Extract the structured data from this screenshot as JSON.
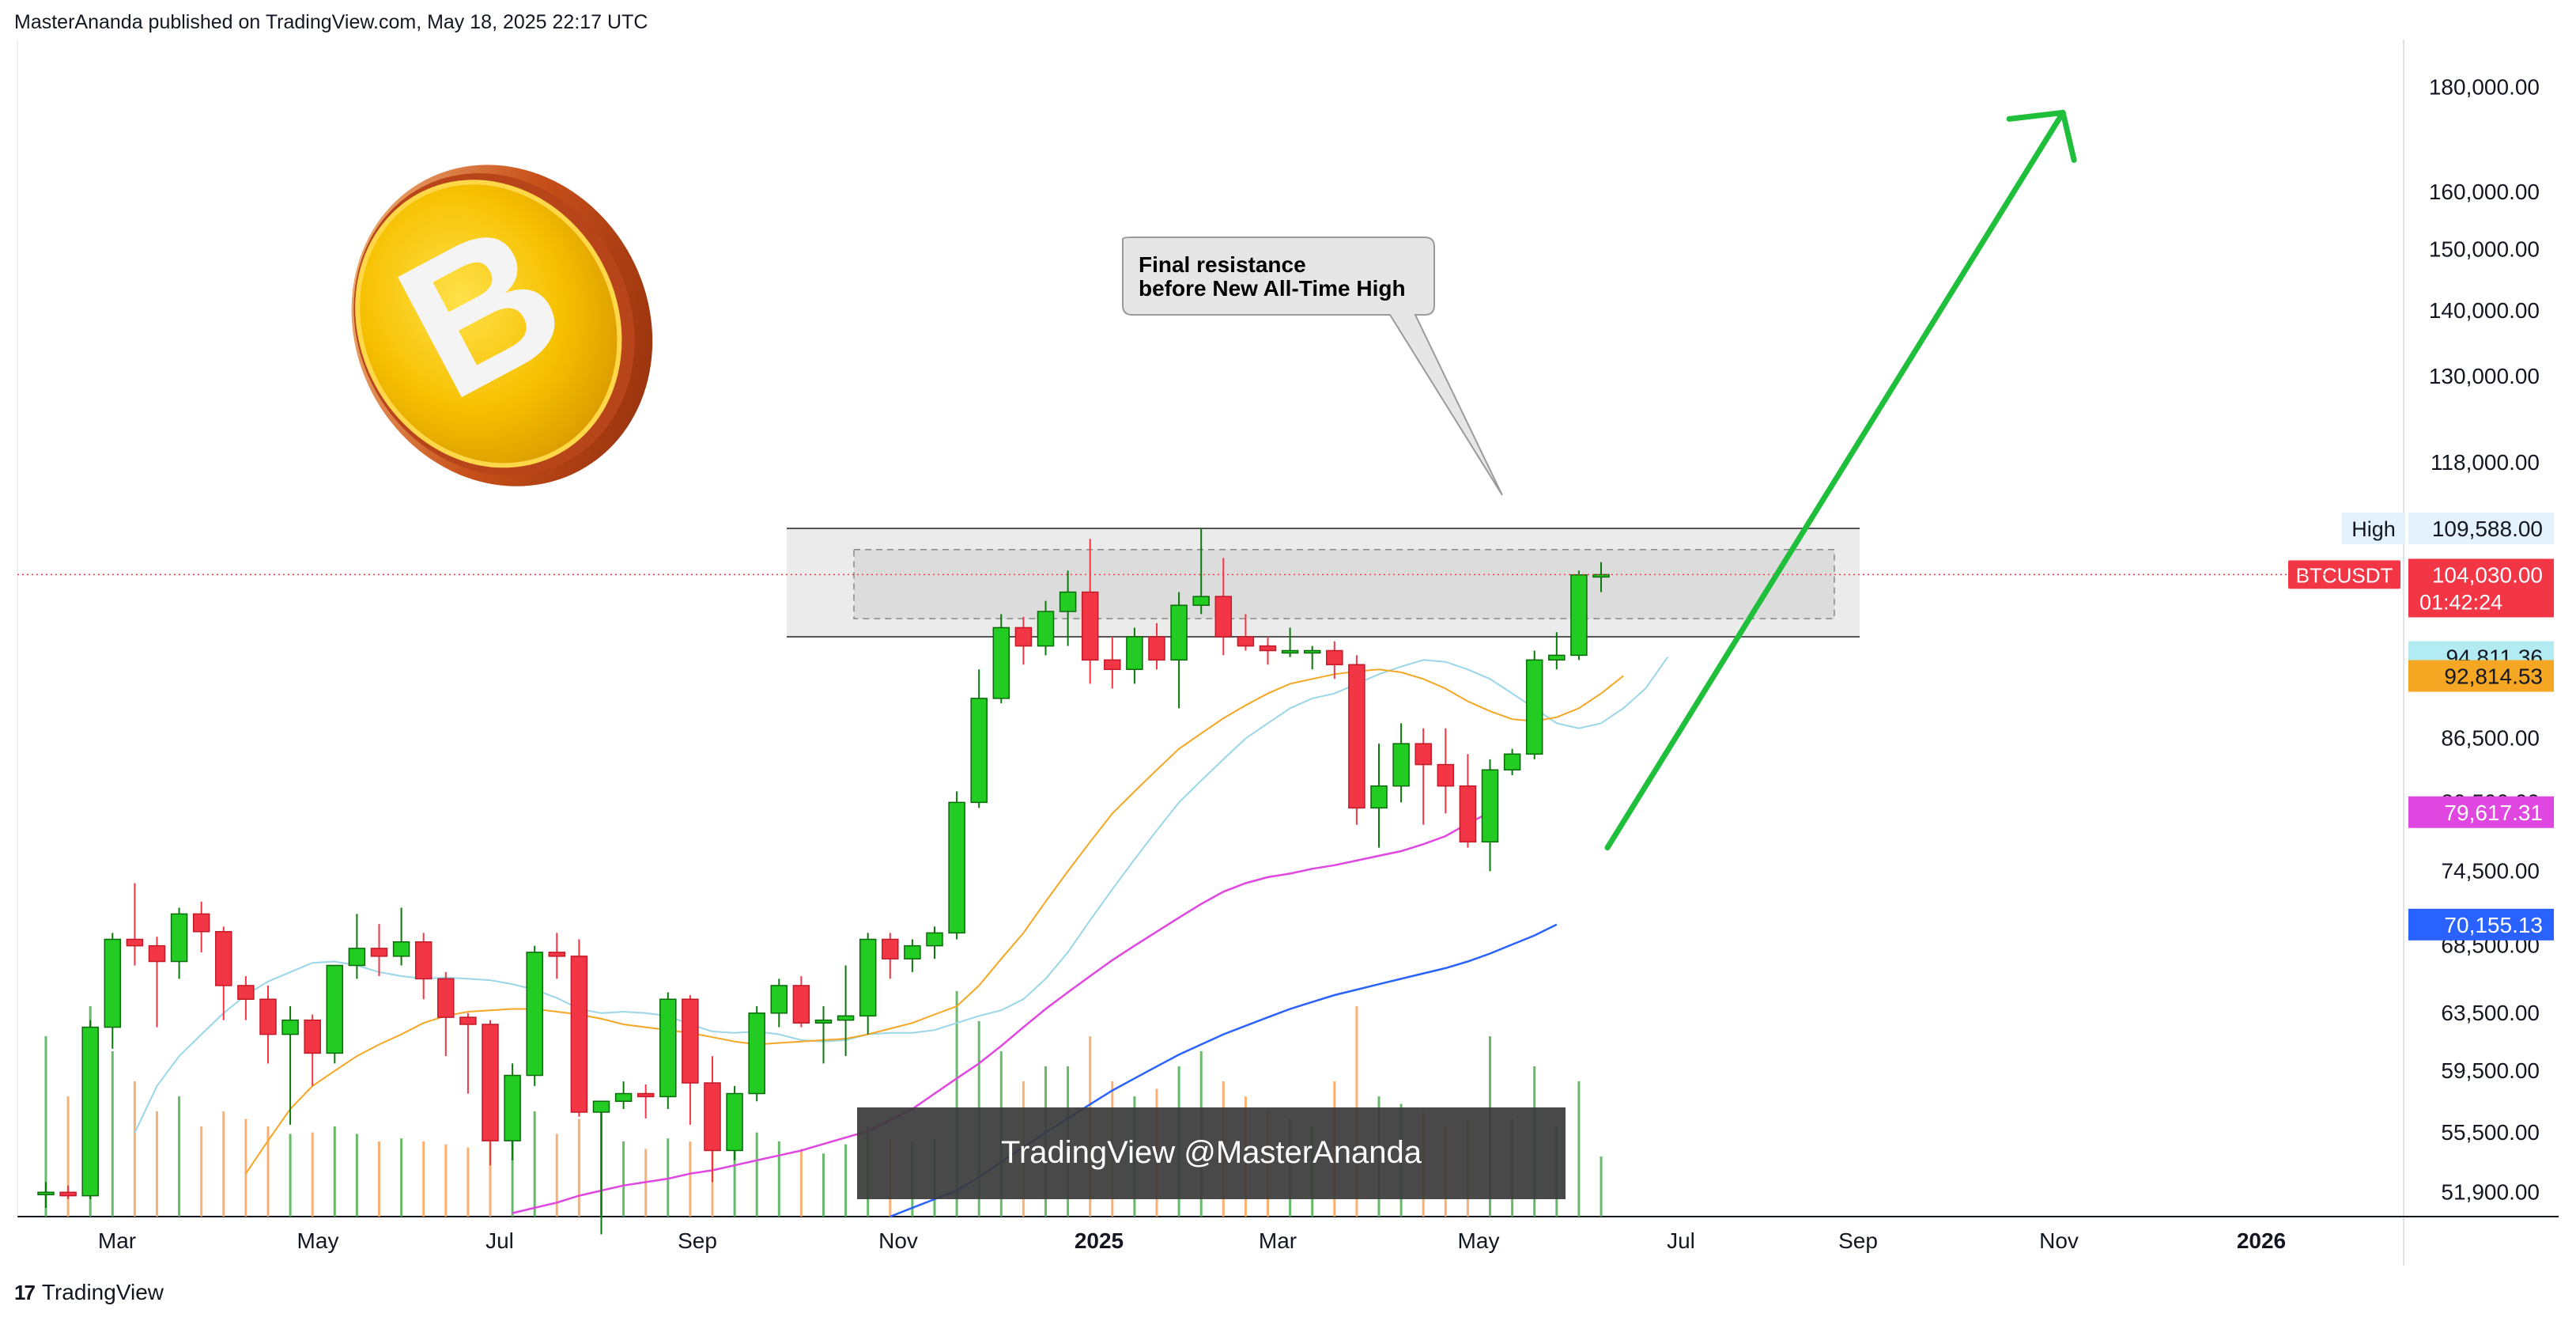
{
  "header": {
    "published": "MasterAnanda published on TradingView.com, May 18, 2025 22:17 UTC"
  },
  "footer": {
    "brand": "TradingView",
    "logo_glyph": "17"
  },
  "watermark": {
    "text": "TradingView @MasterAnanda"
  },
  "annotation": {
    "line1": "Final resistance",
    "line2": "before New All-Time High"
  },
  "coin": {
    "icon": "bitcoin-coin-icon",
    "glyph": "B"
  },
  "colors": {
    "up": "#22cc22",
    "down": "#f23645",
    "ma20": "#9ad6e8",
    "ma50": "#f5a623",
    "ma100": "#e046e0",
    "ma200": "#2962ff",
    "arrow": "#1fbf3c",
    "vol_up": "#4caf50",
    "vol_down": "#f7a35c"
  },
  "chart_data": {
    "type": "candlestick",
    "symbol": "BTCUSDT",
    "interval": "1W",
    "scale": "log",
    "ylim": [
      50500,
      190000
    ],
    "xlabels": [
      "Mar",
      "May",
      "Jul",
      "Sep",
      "Nov",
      "2025",
      "Mar",
      "May",
      "Jul",
      "Sep",
      "Nov",
      "2026"
    ],
    "y_ticks": [
      "180,000.00",
      "160,000.00",
      "150,000.00",
      "140,000.00",
      "130,000.00",
      "118,000.00",
      "86,500.00",
      "80,500.00",
      "74,500.00",
      "68,500.00",
      "63,500.00",
      "59,500.00",
      "55,500.00",
      "51,900.00"
    ],
    "candles": [
      [
        51900,
        52500,
        51000,
        51900,
        1200
      ],
      [
        51900,
        52300,
        51500,
        51700,
        800
      ],
      [
        51700,
        63000,
        51500,
        62500,
        1400
      ],
      [
        62500,
        69500,
        61000,
        69000,
        1100
      ],
      [
        69000,
        73500,
        67000,
        68500,
        900
      ],
      [
        68500,
        69200,
        62500,
        67300,
        700
      ],
      [
        67300,
        71500,
        66000,
        71000,
        800
      ],
      [
        71000,
        72000,
        68000,
        69600,
        600
      ],
      [
        69600,
        70000,
        63000,
        65500,
        700
      ],
      [
        65500,
        66200,
        63000,
        64500,
        650
      ],
      [
        64500,
        65500,
        60000,
        62000,
        600
      ],
      [
        62000,
        64000,
        56000,
        63000,
        550
      ],
      [
        63000,
        63400,
        58500,
        60700,
        560
      ],
      [
        60700,
        67000,
        60000,
        67000,
        600
      ],
      [
        67000,
        71000,
        66000,
        68300,
        550
      ],
      [
        68300,
        70200,
        66200,
        67700,
        500
      ],
      [
        67700,
        71500,
        67000,
        68800,
        520
      ],
      [
        68800,
        69500,
        64500,
        66000,
        500
      ],
      [
        66000,
        66500,
        60500,
        63200,
        480
      ],
      [
        63200,
        63500,
        58000,
        62700,
        460
      ],
      [
        62700,
        63000,
        53500,
        55000,
        550
      ],
      [
        55000,
        60000,
        53800,
        59200,
        520
      ],
      [
        59200,
        68500,
        58500,
        68000,
        700
      ],
      [
        68000,
        69500,
        66000,
        67700,
        550
      ],
      [
        67700,
        69000,
        56500,
        56800,
        650
      ],
      [
        56800,
        57500,
        49500,
        57500,
        700
      ],
      [
        57500,
        58800,
        57000,
        58000,
        500
      ],
      [
        58000,
        58600,
        56400,
        57800,
        450
      ],
      [
        57800,
        65000,
        57000,
        64500,
        520
      ],
      [
        64500,
        64800,
        56000,
        58700,
        500
      ],
      [
        58700,
        60500,
        52500,
        54400,
        480
      ],
      [
        54400,
        58500,
        53800,
        58000,
        520
      ],
      [
        58000,
        64000,
        57500,
        63500,
        560
      ],
      [
        63500,
        66000,
        62500,
        65500,
        500
      ],
      [
        65500,
        66200,
        62500,
        62800,
        450
      ],
      [
        62800,
        64000,
        60000,
        63000,
        420
      ],
      [
        63000,
        67000,
        60500,
        63300,
        480
      ],
      [
        63300,
        69500,
        62000,
        69000,
        600
      ],
      [
        69000,
        69500,
        66000,
        67500,
        520
      ],
      [
        67500,
        69000,
        66500,
        68500,
        500
      ],
      [
        68500,
        70000,
        67500,
        69500,
        520
      ],
      [
        69500,
        81500,
        69000,
        80500,
        1500
      ],
      [
        80500,
        93500,
        80000,
        90500,
        1300
      ],
      [
        90500,
        99500,
        90000,
        98000,
        1100
      ],
      [
        98000,
        99200,
        94000,
        96000,
        900
      ],
      [
        96000,
        101000,
        95000,
        99800,
        1000
      ],
      [
        99800,
        104500,
        96000,
        102000,
        1000
      ],
      [
        102000,
        108300,
        92000,
        94500,
        1200
      ],
      [
        94500,
        97000,
        91500,
        93500,
        900
      ],
      [
        93500,
        98000,
        92000,
        97000,
        800
      ],
      [
        97000,
        98500,
        93500,
        94500,
        850
      ],
      [
        94500,
        102000,
        89500,
        100500,
        1000
      ],
      [
        100500,
        109588,
        99500,
        101500,
        1100
      ],
      [
        101500,
        106000,
        95000,
        97000,
        900
      ],
      [
        97000,
        99500,
        95500,
        96000,
        800
      ],
      [
        96000,
        97000,
        94000,
        95500,
        700
      ],
      [
        95500,
        98000,
        94800,
        95500,
        650
      ],
      [
        95500,
        96000,
        93500,
        95500,
        600
      ],
      [
        95500,
        96500,
        92500,
        94000,
        900
      ],
      [
        94000,
        95000,
        78500,
        80000,
        1400
      ],
      [
        80000,
        86000,
        76500,
        82000,
        800
      ],
      [
        82000,
        88000,
        80500,
        86000,
        750
      ],
      [
        86000,
        87500,
        78500,
        84000,
        700
      ],
      [
        84000,
        87500,
        79500,
        82000,
        600
      ],
      [
        82000,
        85000,
        76500,
        77000,
        650
      ],
      [
        77000,
        84500,
        74500,
        83500,
        1200
      ],
      [
        83500,
        85500,
        83000,
        85000,
        650
      ],
      [
        85000,
        95500,
        84500,
        94500,
        1000
      ],
      [
        94500,
        97500,
        93500,
        95000,
        600
      ],
      [
        95000,
        104500,
        94500,
        104000,
        900
      ],
      [
        104000,
        105500,
        102000,
        104030,
        400
      ]
    ],
    "moving_averages": [
      {
        "name": "MA20",
        "start_index": 4,
        "values": [
          55500,
          58500,
          60500,
          62000,
          63500,
          64800,
          65800,
          66500,
          67200,
          67300,
          67000,
          66500,
          66200,
          66000,
          66100,
          66000,
          65900,
          65600,
          65200,
          64600,
          63800,
          63500,
          63600,
          63500,
          63300,
          62700,
          62200,
          62100,
          62200,
          62000,
          61600,
          61500,
          61600,
          62000,
          62100,
          62100,
          62300,
          62800,
          63300,
          63700,
          64500,
          66000,
          68000,
          70500,
          73000,
          75500,
          78000,
          80500,
          82500,
          84500,
          86500,
          88000,
          89500,
          90500,
          91000,
          92000,
          93000,
          93800,
          94500,
          94300,
          93500,
          92500,
          91000,
          89500,
          88000,
          87500,
          88000,
          89500,
          91500,
          94811.36
        ]
      },
      {
        "name": "MA50",
        "start_index": 9,
        "values": [
          53000,
          55000,
          57000,
          58500,
          59500,
          60500,
          61300,
          62000,
          62800,
          63300,
          63600,
          63700,
          63800,
          63800,
          63600,
          63400,
          63100,
          62700,
          62500,
          62300,
          62100,
          61800,
          61500,
          61300,
          61400,
          61500,
          61600,
          61700,
          62000,
          62400,
          62800,
          63400,
          64000,
          65500,
          67500,
          69500,
          72000,
          74500,
          77000,
          79500,
          81500,
          83500,
          85500,
          87000,
          88500,
          89800,
          91000,
          92000,
          92500,
          93000,
          93300,
          93500,
          93200,
          92500,
          91500,
          90200,
          89200,
          88400,
          88200,
          88600,
          89500,
          91000,
          92814.53
        ]
      },
      {
        "name": "MA100",
        "start_index": 21,
        "values": [
          50700,
          51000,
          51300,
          51700,
          52000,
          52300,
          52500,
          52700,
          53000,
          53200,
          53500,
          53800,
          54100,
          54400,
          54800,
          55200,
          55600,
          56300,
          57000,
          58000,
          59000,
          60000,
          61200,
          62500,
          63800,
          65000,
          66200,
          67400,
          68500,
          69600,
          70700,
          71800,
          72800,
          73500,
          74000,
          74300,
          74700,
          75000,
          75400,
          75800,
          76200,
          76800,
          77500,
          78600,
          79617.31
        ]
      },
      {
        "name": "MA200",
        "start_index": 38,
        "values": [
          50500,
          51000,
          51500,
          52000,
          52800,
          53700,
          54600,
          55500,
          56400,
          57300,
          58200,
          59000,
          59800,
          60600,
          61300,
          62000,
          62600,
          63200,
          63800,
          64300,
          64800,
          65200,
          65600,
          66000,
          66400,
          66800,
          67300,
          67900,
          68600,
          69300,
          70155.13
        ]
      }
    ],
    "resistance_zone": {
      "outer": [
        97000,
        109588
      ],
      "inner": [
        99000,
        107000
      ]
    },
    "price_labels": [
      {
        "label": "High",
        "value": "109,588.00",
        "price": 109588
      },
      {
        "label": "BTCUSDT",
        "value": "104,030.00",
        "timer": "01:42:24",
        "price": 104030
      },
      {
        "value": "94,811.36",
        "price": 94811.36,
        "color": "#b2ebf2"
      },
      {
        "value": "92,814.53",
        "price": 92814.53,
        "color": "#f5a623"
      },
      {
        "value": "79,617.31",
        "price": 79617.31,
        "color": "#e046e0"
      },
      {
        "value": "70,155.13",
        "price": 70155.13,
        "color": "#2962ff"
      }
    ],
    "projection": {
      "from_index": 70,
      "from_price": 76500,
      "to_index": 91,
      "to_price": 175000
    }
  }
}
